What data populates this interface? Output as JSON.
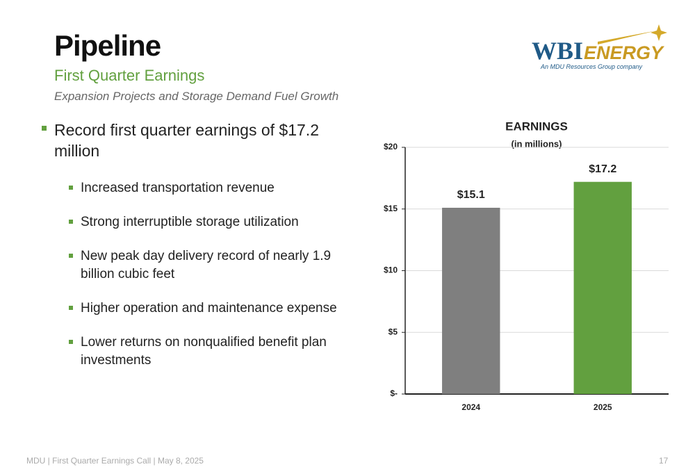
{
  "header": {
    "title": "Pipeline",
    "subtitle": "First Quarter Earnings",
    "tagline": "Expansion Projects and Storage Demand Fuel Growth"
  },
  "logo": {
    "brand": "WBI",
    "brand_accent": "ENERGY",
    "caption": "An MDU Resources Group company"
  },
  "main_bullet": "Record first quarter earnings of $17.2 million",
  "sub_bullets": [
    "Increased transportation revenue",
    "Strong interruptible storage utilization",
    "New peak day delivery record of nearly 1.9 billion cubic feet",
    "Higher operation and maintenance expense",
    "Lower returns on nonqualified benefit plan investments"
  ],
  "footer": {
    "text": "MDU | First Quarter Earnings Call | May 8, 2025",
    "page": "17"
  },
  "chart_data": {
    "type": "bar",
    "title": "EARNINGS",
    "subtitle": "(in millions)",
    "categories": [
      "2024",
      "2025"
    ],
    "values": [
      15.1,
      17.2
    ],
    "value_labels": [
      "$15.1",
      "$17.2"
    ],
    "colors": [
      "#7f7f7f",
      "#62a03f"
    ],
    "ylim": [
      0,
      20
    ],
    "yticks": [
      {
        "value": 0,
        "label": "$-"
      },
      {
        "value": 5,
        "label": "$5"
      },
      {
        "value": 10,
        "label": "$10"
      },
      {
        "value": 15,
        "label": "$15"
      },
      {
        "value": 20,
        "label": "$20"
      }
    ],
    "grid": true
  }
}
